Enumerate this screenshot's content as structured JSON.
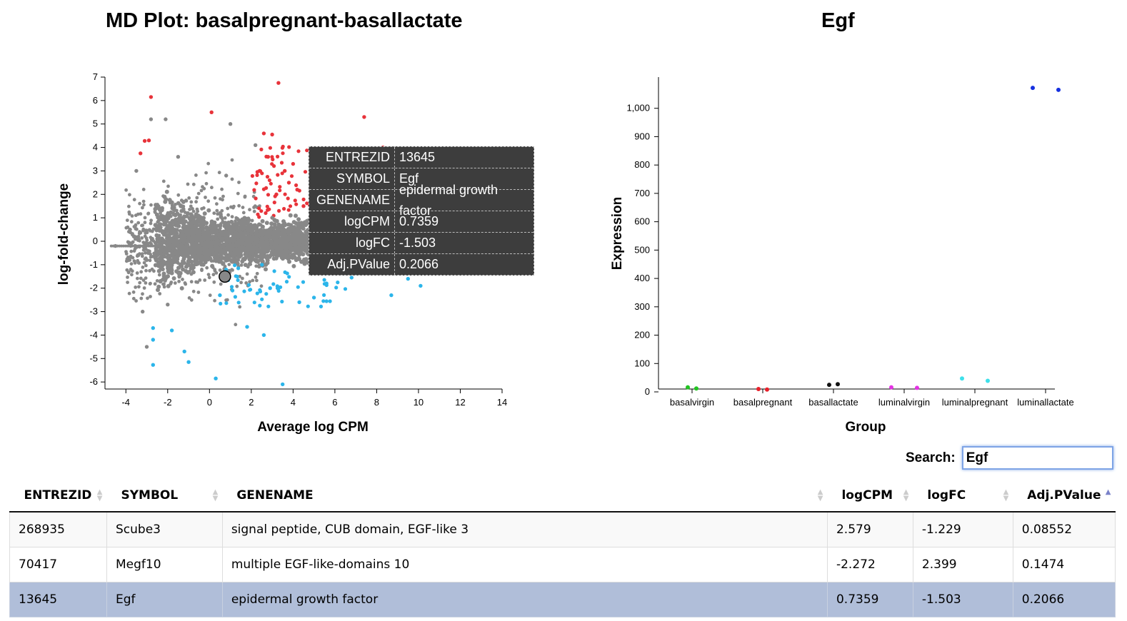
{
  "md_panel": {
    "title": "MD Plot: basalpregnant-basallactate"
  },
  "expr_panel": {
    "title": "Egf"
  },
  "tooltip": [
    {
      "key": "ENTREZID",
      "value": "13645"
    },
    {
      "key": "SYMBOL",
      "value": "Egf"
    },
    {
      "key": "GENENAME",
      "value": "epidermal growth factor"
    },
    {
      "key": "logCPM",
      "value": "0.7359"
    },
    {
      "key": "logFC",
      "value": "-1.503"
    },
    {
      "key": "Adj.PValue",
      "value": "0.2066"
    }
  ],
  "search": {
    "label": "Search:",
    "value": "Egf"
  },
  "table": {
    "headers": [
      "ENTREZID",
      "SYMBOL",
      "GENENAME",
      "logCPM",
      "logFC",
      "Adj.PValue"
    ],
    "sorted_column": "Adj.PValue",
    "rows": [
      [
        "268935",
        "Scube3",
        "signal peptide, CUB domain, EGF-like 3",
        "2.579",
        "-1.229",
        "0.08552"
      ],
      [
        "70417",
        "Megf10",
        "multiple EGF-like-domains 10",
        "-2.272",
        "2.399",
        "0.1474"
      ],
      [
        "13645",
        "Egf",
        "epidermal growth factor",
        "0.7359",
        "-1.503",
        "0.2066"
      ]
    ],
    "selected_row": 2
  },
  "chart_data": [
    {
      "type": "scatter",
      "title": "MD Plot: basalpregnant-basallactate",
      "xlabel": "Average log CPM",
      "ylabel": "log-fold-change",
      "xlim": [
        -5,
        14
      ],
      "ylim": [
        -6.3,
        7
      ],
      "xticks": [
        -4,
        -2,
        0,
        2,
        4,
        6,
        8,
        10,
        12,
        14
      ],
      "yticks": [
        -6,
        -5,
        -4,
        -3,
        -2,
        -1,
        0,
        1,
        2,
        3,
        4,
        5,
        6,
        7
      ],
      "colors": {
        "not_sig": "#888888",
        "up": "#e8333a",
        "down": "#2bb5ea",
        "highlight_fill": "#888888",
        "highlight_stroke": "#000000"
      },
      "highlighted_point": {
        "x": 0.7359,
        "y": -1.503
      },
      "series": [
        {
          "values": [
            [
              3.3,
              6.75
            ],
            [
              -2.8,
              6.15
            ],
            [
              0.1,
              5.5
            ],
            [
              7.4,
              5.3
            ],
            [
              -3.1,
              4.28
            ],
            [
              -2.9,
              4.3
            ],
            [
              -3.3,
              3.75
            ],
            [
              3.0,
              4.55
            ],
            [
              2.6,
              4.6
            ],
            [
              2.8,
              3.6
            ],
            [
              3.8,
              2.5
            ],
            [
              4.2,
              2.2
            ],
            [
              4.5,
              1.5
            ],
            [
              3.2,
              2.0
            ],
            [
              4.9,
              2.3
            ],
            [
              8.3,
              4.0
            ],
            [
              5.1,
              1.8
            ],
            [
              3.6,
              3.0
            ],
            [
              4.0,
              3.3
            ],
            [
              2.4,
              3.0
            ]
          ]
        },
        {
          "values": [
            [
              3.5,
              -6.1
            ],
            [
              0.3,
              -5.85
            ],
            [
              -1.0,
              -5.15
            ],
            [
              -2.7,
              -5.27
            ],
            [
              -1.2,
              -4.7
            ],
            [
              -2.7,
              -4.2
            ],
            [
              2.6,
              -4.0
            ],
            [
              -1.8,
              -3.8
            ],
            [
              -2.7,
              -3.7
            ],
            [
              1.8,
              -3.65
            ],
            [
              4.3,
              -2.6
            ],
            [
              5.6,
              -1.8
            ],
            [
              6.8,
              -1.55
            ],
            [
              8.7,
              -2.3
            ],
            [
              10.1,
              -1.9
            ],
            [
              9.5,
              -1.6
            ],
            [
              1.1,
              -2.1
            ],
            [
              0.5,
              -2.3
            ],
            [
              2.9,
              -2.0
            ],
            [
              5.0,
              -2.4
            ]
          ]
        },
        {
          "values": [
            [
              -4.5,
              -0.2
            ],
            [
              -3.8,
              0.5
            ],
            [
              -3.0,
              -0.8
            ],
            [
              0.5,
              1.2
            ],
            [
              2.0,
              -0.5
            ],
            [
              -1.5,
              3.6
            ],
            [
              -3.5,
              3.0
            ],
            [
              -2.0,
              -2.7
            ],
            [
              -3.2,
              -3.0
            ],
            [
              0.8,
              2.8
            ],
            [
              1.0,
              5.0
            ],
            [
              2.2,
              4.1
            ],
            [
              -2.8,
              5.2
            ],
            [
              -2.1,
              5.2
            ],
            [
              3.0,
              1.0
            ],
            [
              5.0,
              0.5
            ],
            [
              7.5,
              -0.5
            ],
            [
              9.0,
              0.3
            ],
            [
              10.5,
              -1.0
            ],
            [
              -3.0,
              -4.5
            ]
          ]
        }
      ]
    },
    {
      "type": "scatter",
      "title": "Egf",
      "xlabel": "Group",
      "ylabel": "Expression",
      "ylim": [
        0,
        1100
      ],
      "yticks": [
        0,
        100,
        200,
        300,
        400,
        500,
        600,
        700,
        800,
        900,
        1000
      ],
      "ytick_labels": [
        "0",
        "100",
        "200",
        "300",
        "400",
        "500",
        "600",
        "700",
        "800",
        "900",
        "1,000"
      ],
      "categories": [
        "basalvirgin",
        "basalpregnant",
        "basallactate",
        "luminalvirgin",
        "luminalpregnant",
        "luminallactate"
      ],
      "series": [
        {
          "category": "basalvirgin",
          "color": "#22c422",
          "values": [
            16,
            12
          ]
        },
        {
          "category": "basalpregnant",
          "color": "#e8202a",
          "values": [
            10,
            8
          ]
        },
        {
          "category": "basallactate",
          "color": "#111111",
          "values": [
            25,
            27
          ]
        },
        {
          "category": "luminalvirgin",
          "color": "#e433e4",
          "values": [
            16,
            14
          ]
        },
        {
          "category": "luminalpregnant",
          "color": "#3ee0ea",
          "values": [
            47,
            39
          ]
        },
        {
          "category": "luminallactate",
          "color": "#1530e0",
          "values": [
            1072,
            1065
          ]
        }
      ]
    }
  ]
}
